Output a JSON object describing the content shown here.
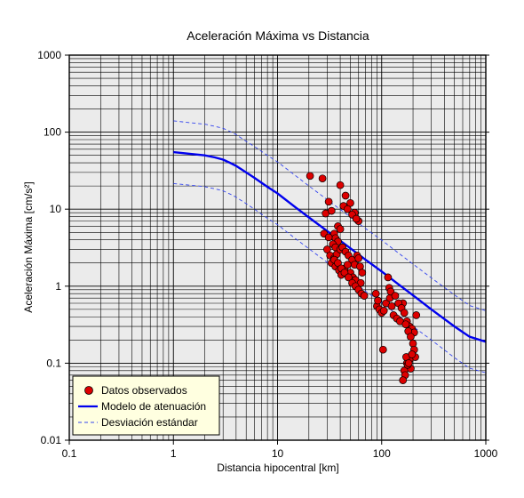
{
  "chart_data": {
    "type": "scatter",
    "title": "Aceleración Máxima vs Distancia",
    "xlabel": "Distancia hipocentral [km]",
    "ylabel": "Aceleración Máxima [cm/s²]",
    "x_scale": "log",
    "y_scale": "log",
    "xlim": [
      0.1,
      1000
    ],
    "ylim": [
      0.01,
      1000
    ],
    "x_ticks": [
      {
        "value": 0.1,
        "label": "0.1"
      },
      {
        "value": 1,
        "label": "1"
      },
      {
        "value": 10,
        "label": "10"
      },
      {
        "value": 100,
        "label": "100"
      },
      {
        "value": 1000,
        "label": "1000"
      }
    ],
    "y_ticks": [
      {
        "value": 0.01,
        "label": "0.01"
      },
      {
        "value": 0.1,
        "label": "0.1"
      },
      {
        "value": 1,
        "label": "1"
      },
      {
        "value": 10,
        "label": "10"
      },
      {
        "value": 100,
        "label": "100"
      },
      {
        "value": 1000,
        "label": "1000"
      }
    ],
    "grid": true,
    "legend_position": "bottom-left",
    "colors": {
      "points": "#dd0000",
      "model": "#0000ee",
      "std": "#3344ee",
      "plot_bg": "#ebebeb",
      "legend_bg": "#ffffe0"
    },
    "legend": [
      {
        "key": "points",
        "label": "Datos observados"
      },
      {
        "key": "model",
        "label": "Modelo de atenuación"
      },
      {
        "key": "std",
        "label": "Desviación estándar"
      }
    ],
    "series": [
      {
        "key": "points",
        "name": "Datos observados",
        "style": "marker",
        "x": [
          20.5,
          27,
          29,
          31,
          33,
          35,
          38,
          40,
          36,
          38,
          28,
          31,
          34,
          36,
          30,
          32,
          35,
          37,
          40,
          42,
          45,
          48,
          52,
          55,
          58,
          60,
          62,
          65,
          33,
          36,
          39,
          41,
          44,
          47,
          50,
          53,
          56,
          59,
          63,
          35,
          38,
          41,
          44,
          48,
          52,
          56,
          60,
          64,
          68,
          40,
          45,
          50,
          55,
          60,
          43,
          47,
          52,
          57,
          90,
          95,
          100,
          105,
          110,
          88,
          92,
          120,
          125,
          130,
          140,
          150,
          160,
          115,
          118,
          122,
          135,
          145,
          155,
          165,
          175,
          185,
          195,
          205,
          215,
          170,
          180,
          190,
          200,
          205,
          210,
          175,
          180,
          185,
          190,
          165,
          172,
          178,
          168,
          182,
          195,
          160,
          103
        ],
        "y": [
          27,
          25,
          8.8,
          12.5,
          9.5,
          4.8,
          6,
          5.5,
          4.2,
          3.8,
          4.8,
          4.3,
          3.5,
          3.2,
          3.0,
          2.5,
          2.3,
          2.6,
          3.0,
          3.2,
          2.8,
          2.5,
          2.2,
          1.9,
          2.5,
          2.3,
          1.8,
          1.5,
          2.0,
          1.8,
          1.6,
          1.4,
          1.7,
          1.9,
          1.5,
          1.3,
          1.2,
          1.0,
          1.1,
          2.2,
          2.0,
          1.7,
          1.5,
          1.3,
          1.1,
          1.0,
          0.9,
          0.8,
          0.75,
          20.5,
          15,
          12,
          9,
          7,
          11,
          10,
          8.5,
          7.5,
          0.55,
          0.5,
          0.45,
          0.48,
          0.6,
          0.8,
          0.65,
          0.7,
          0.55,
          0.42,
          0.38,
          0.35,
          0.6,
          1.3,
          0.95,
          0.85,
          0.75,
          0.6,
          0.52,
          0.45,
          0.35,
          0.3,
          0.28,
          0.25,
          0.42,
          0.32,
          0.26,
          0.22,
          0.18,
          0.15,
          0.12,
          0.1,
          0.09,
          0.11,
          0.085,
          0.08,
          0.12,
          0.095,
          0.07,
          0.1,
          0.13,
          0.06,
          0.15
        ]
      },
      {
        "key": "model",
        "name": "Modelo de atenuación",
        "style": "line",
        "x": [
          1,
          1.5,
          2,
          2.5,
          3,
          3.5,
          4,
          5,
          6,
          8,
          10,
          15,
          20,
          30,
          50,
          70,
          100,
          150,
          200,
          300,
          500,
          700,
          1000
        ],
        "y": [
          55,
          52,
          50,
          47,
          44,
          40,
          36.5,
          30,
          25.5,
          19.5,
          16,
          10.5,
          7.8,
          5.2,
          3.1,
          2.2,
          1.55,
          1.02,
          0.76,
          0.5,
          0.3,
          0.22,
          0.19
        ]
      },
      {
        "key": "std",
        "name": "Desviación estándar",
        "style": "dashed",
        "x": [
          1,
          1.5,
          2,
          2.5,
          3,
          3.5,
          4,
          5,
          6,
          8,
          10,
          15,
          20,
          30,
          50,
          70,
          100,
          150,
          200,
          300,
          500,
          700,
          1000
        ],
        "y": [
          140,
          132,
          127,
          119,
          112,
          102,
          93,
          76,
          65,
          50,
          41,
          27,
          20,
          13.3,
          7.9,
          5.6,
          3.95,
          2.6,
          1.94,
          1.28,
          0.77,
          0.56,
          0.48
        ]
      },
      {
        "key": "std",
        "name": "Desviación estándar",
        "style": "dashed",
        "x": [
          1,
          1.5,
          2,
          2.5,
          3,
          3.5,
          4,
          5,
          6,
          8,
          10,
          15,
          20,
          30,
          50,
          70,
          100,
          150,
          200,
          300,
          500,
          700,
          1000
        ],
        "y": [
          21.5,
          20.4,
          19.6,
          18.4,
          17.3,
          15.7,
          14.3,
          11.8,
          10,
          7.6,
          6.3,
          4.1,
          3.06,
          2.04,
          1.22,
          0.86,
          0.61,
          0.4,
          0.3,
          0.2,
          0.118,
          0.086,
          0.075
        ]
      }
    ]
  }
}
